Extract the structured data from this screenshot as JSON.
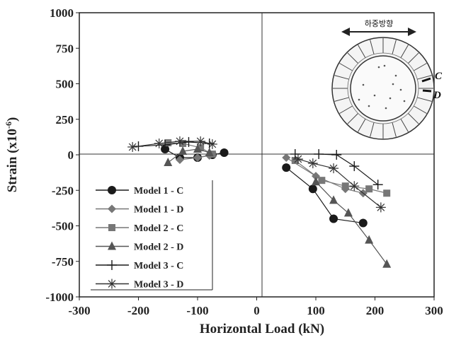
{
  "chart_data": {
    "type": "line",
    "xlabel": "Horizontal Load (kN)",
    "ylabel": "Strain (x10",
    "ylabel_sup": "-6",
    "ylabel_close": ")",
    "xlim": [
      -300,
      300
    ],
    "ylim": [
      -1000,
      1000
    ],
    "x_ticks": [
      -300,
      -200,
      -100,
      0,
      100,
      200,
      300
    ],
    "y_ticks": [
      1000,
      750,
      500,
      250,
      0,
      -250,
      -500,
      -750,
      -1000
    ],
    "x_tick_labels": [
      "-300",
      "-200",
      "-100",
      "0",
      "100",
      "200",
      "300"
    ],
    "y_tick_labels": [
      "1000",
      "750",
      "500",
      "250",
      "0",
      "-250",
      "-500",
      "-750",
      "-1000"
    ],
    "grid": false,
    "legend_position": "lower-left",
    "series": [
      {
        "name": "Model 1 - C",
        "marker": "circle",
        "color": "#1a1a1a",
        "segments": [
          {
            "x": [
              -155,
              -130,
              -100,
              -75,
              -55
            ],
            "y": [
              40,
              -20,
              -20,
              0,
              15
            ]
          },
          {
            "x": [
              50,
              95,
              130,
              180
            ],
            "y": [
              -90,
              -240,
              -450,
              -480
            ]
          }
        ]
      },
      {
        "name": "Model 1 - D",
        "marker": "diamond",
        "color": "#777777",
        "segments": [
          {
            "x": [
              -130,
              -100,
              -80
            ],
            "y": [
              -35,
              -20,
              -5
            ]
          },
          {
            "x": [
              50,
              100,
              150,
              180
            ],
            "y": [
              -20,
              -150,
              -240,
              -270
            ]
          }
        ]
      },
      {
        "name": "Model 2 - C",
        "marker": "square",
        "color": "#777777",
        "segments": [
          {
            "x": [
              -150,
              -125,
              -95,
              -75
            ],
            "y": [
              85,
              80,
              50,
              5
            ]
          },
          {
            "x": [
              65,
              110,
              150,
              190,
              220
            ],
            "y": [
              -40,
              -180,
              -220,
              -240,
              -270
            ]
          }
        ]
      },
      {
        "name": "Model 2 - D",
        "marker": "triangle",
        "color": "#555555",
        "segments": [
          {
            "x": [
              -150,
              -125,
              -100,
              -80
            ],
            "y": [
              -55,
              25,
              40,
              15
            ]
          },
          {
            "x": [
              100,
              130,
              155,
              190,
              220
            ],
            "y": [
              -190,
              -320,
              -410,
              -600,
              -770
            ]
          }
        ]
      },
      {
        "name": "Model 3 - C",
        "marker": "plus",
        "color": "#1a1a1a",
        "segments": [
          {
            "x": [
              -200,
              -155,
              -115,
              -80
            ],
            "y": [
              60,
              70,
              90,
              80
            ]
          },
          {
            "x": [
              65,
              105,
              135,
              165,
              205
            ],
            "y": [
              5,
              5,
              0,
              -80,
              -210
            ]
          }
        ]
      },
      {
        "name": "Model 3 - D",
        "marker": "asterisk",
        "color": "#333333",
        "segments": [
          {
            "x": [
              -210,
              -165,
              -130,
              -95,
              -75
            ],
            "y": [
              55,
              80,
              95,
              95,
              75
            ]
          },
          {
            "x": [
              70,
              95,
              130,
              165,
              210
            ],
            "y": [
              -30,
              -60,
              -95,
              -220,
              -370
            ]
          }
        ]
      }
    ],
    "inset": {
      "arrow_label": "하중방향",
      "callouts": [
        "C",
        "D"
      ]
    }
  }
}
